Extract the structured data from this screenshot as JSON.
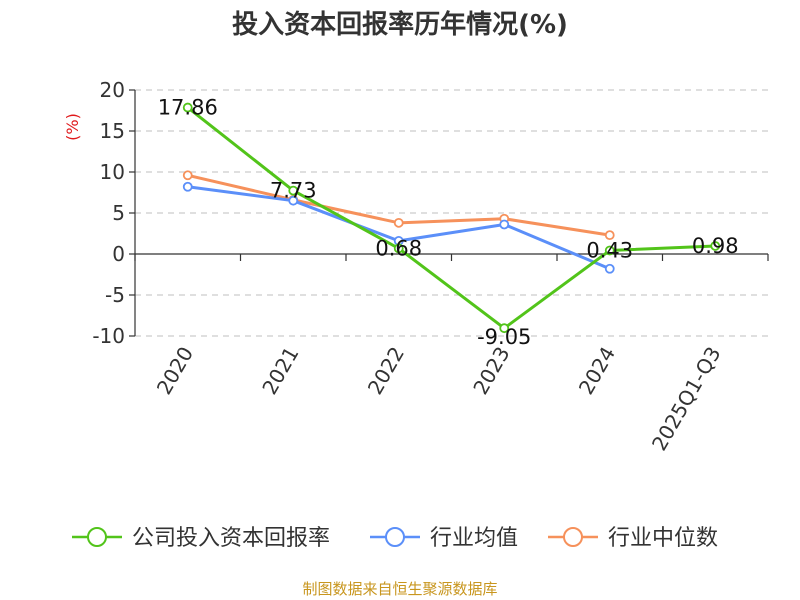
{
  "chart_data": {
    "type": "line",
    "title": "投入资本回报率历年情况(%)",
    "ylabel": "(%)",
    "xlabel": "",
    "ylim": [
      -10,
      20
    ],
    "yticks": [
      20,
      15,
      10,
      5,
      0,
      -5,
      -10
    ],
    "grid": true,
    "categories": [
      "2020",
      "2021",
      "2022",
      "2023",
      "2024",
      "2025Q1-Q3"
    ],
    "series": [
      {
        "name": "公司投入资本回报率",
        "color": "#52c41a",
        "values": [
          17.86,
          7.73,
          0.68,
          -9.05,
          0.43,
          0.98
        ],
        "labels": [
          "17.86",
          "7.73",
          "0.68",
          "-9.05",
          "0.43",
          "0.98"
        ]
      },
      {
        "name": "行业均值",
        "color": "#5b8ff9",
        "values": [
          8.2,
          6.5,
          1.6,
          3.6,
          -1.8,
          null
        ]
      },
      {
        "name": "行业中位数",
        "color": "#f6915b",
        "values": [
          9.6,
          6.6,
          3.8,
          4.3,
          2.3,
          null
        ]
      }
    ],
    "legend_position": "bottom"
  },
  "source": "制图数据来自恒生聚源数据库"
}
